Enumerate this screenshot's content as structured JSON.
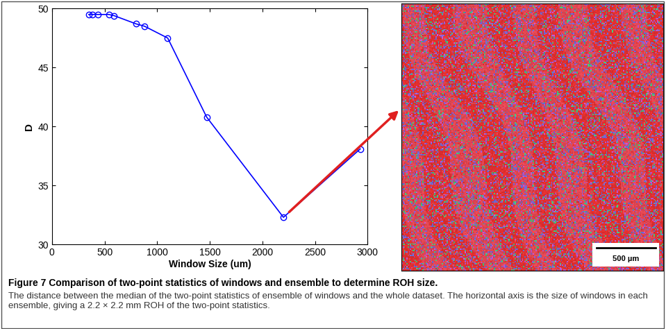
{
  "chart_data": {
    "type": "line",
    "x": [
      350,
      385,
      440,
      540,
      590,
      800,
      880,
      1100,
      1470,
      2200,
      2930
    ],
    "values": [
      49.5,
      49.5,
      49.5,
      49.5,
      49.4,
      48.7,
      48.5,
      47.5,
      40.8,
      32.3,
      38.1
    ],
    "color": "#0000ff",
    "marker": "o",
    "line_style": "solid",
    "xlabel": "Window Size (um)",
    "ylabel": "D",
    "xlim": [
      0,
      3000
    ],
    "xticks": [
      0,
      500,
      1000,
      1500,
      2000,
      2500,
      3000
    ],
    "ylim": [
      30,
      50
    ],
    "yticks": [
      30,
      35,
      40,
      45,
      50
    ]
  },
  "image": {
    "scale_bar": "500 µm"
  },
  "caption": {
    "title": "Figure 7 Comparison of two-point statistics of windows and ensemble to determine ROH size.",
    "text": "The distance between the median of the two-point statistics of ensemble of windows and the whole dataset. The horizontal axis is the size of windows in each ensemble, giving a 2.2 × 2.2 mm ROH of the two-point statistics."
  }
}
